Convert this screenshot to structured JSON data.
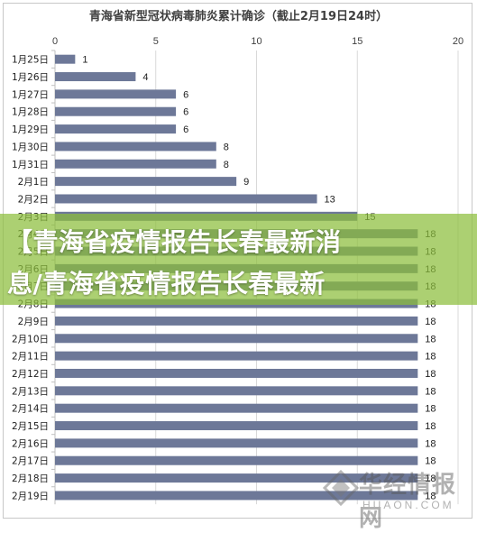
{
  "chart_data": {
    "type": "bar",
    "orientation": "horizontal",
    "title": "青海省新型冠状病毒肺炎累计确诊（截止2月19日24时）",
    "xlabel": "",
    "ylabel": "",
    "xlim": [
      0,
      20
    ],
    "xticks": [
      0,
      5,
      10,
      15,
      20
    ],
    "grid": true,
    "categories": [
      "1月25日",
      "1月26日",
      "1月27日",
      "1月28日",
      "1月29日",
      "1月30日",
      "1月31日",
      "2月1日",
      "2月2日",
      "2月3日",
      "2月4日",
      "2月5日",
      "2月6日",
      "2月7日",
      "2月8日",
      "2月9日",
      "2月10日",
      "2月11日",
      "2月12日",
      "2月13日",
      "2月14日",
      "2月15日",
      "2月16日",
      "2月17日",
      "2月18日",
      "2月19日"
    ],
    "values": [
      1,
      4,
      6,
      6,
      6,
      8,
      8,
      9,
      13,
      15,
      18,
      18,
      18,
      18,
      18,
      18,
      18,
      18,
      18,
      18,
      18,
      18,
      18,
      18,
      18,
      18
    ],
    "bar_color": "#6d7898"
  },
  "banner": {
    "line1": "【青海省疫情报告长春最新消",
    "line2": "息/青海省疫情报告长春最新"
  },
  "watermark": {
    "cn": "华经情报网",
    "en": "HUAON.COM"
  }
}
